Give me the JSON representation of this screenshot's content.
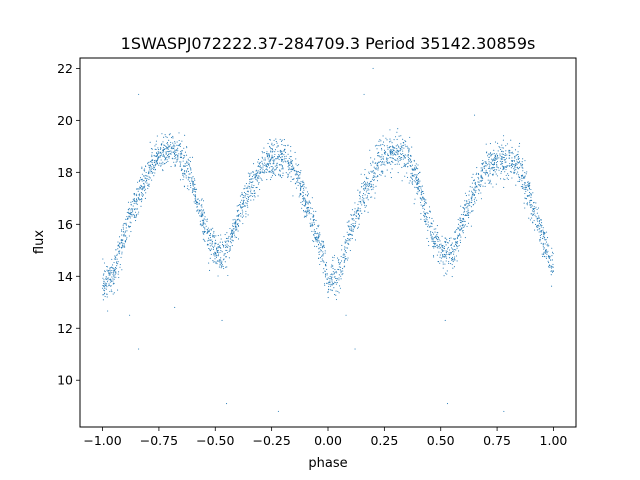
{
  "chart_data": {
    "type": "scatter",
    "title": "1SWASPJ072222.37-284709.3 Period 35142.30859s",
    "xlabel": "phase",
    "ylabel": "flux",
    "xlim": [
      -1.1,
      1.1
    ],
    "ylim": [
      8.2,
      22.4
    ],
    "x_ticks": [
      -1.0,
      -0.75,
      -0.5,
      -0.25,
      0.0,
      0.25,
      0.5,
      0.75,
      1.0
    ],
    "x_tick_labels": [
      "−1.00",
      "−0.75",
      "−0.50",
      "−0.25",
      "0.00",
      "0.25",
      "0.50",
      "0.75",
      "1.00"
    ],
    "y_ticks": [
      10,
      12,
      14,
      16,
      18,
      20,
      22
    ],
    "y_tick_labels": [
      "10",
      "12",
      "14",
      "16",
      "18",
      "20",
      "22"
    ],
    "grid": false,
    "series": [
      {
        "marker_color": "#1f77b4",
        "curve_samples": {
          "x": [
            0.0,
            0.05,
            0.1,
            0.15,
            0.2,
            0.25,
            0.3,
            0.35,
            0.4,
            0.45,
            0.5,
            0.55,
            0.6,
            0.65,
            0.7,
            0.75,
            0.8,
            0.85,
            0.9,
            0.95,
            1.0
          ],
          "y": [
            13.7,
            14.1,
            15.7,
            16.9,
            17.9,
            18.7,
            18.9,
            18.6,
            17.6,
            15.9,
            14.9,
            14.8,
            16.2,
            17.3,
            18.1,
            18.5,
            18.5,
            18.1,
            16.9,
            15.6,
            14.1
          ]
        },
        "scatter_sigma": 0.35,
        "outliers": [
          {
            "x": -0.84,
            "y": 11.2
          },
          {
            "x": -0.88,
            "y": 12.5
          },
          {
            "x": -0.45,
            "y": 9.1
          },
          {
            "x": -0.47,
            "y": 12.3
          },
          {
            "x": -0.22,
            "y": 8.8
          },
          {
            "x": 0.12,
            "y": 11.2
          },
          {
            "x": 0.08,
            "y": 12.5
          },
          {
            "x": 0.53,
            "y": 9.1
          },
          {
            "x": 0.78,
            "y": 8.8
          },
          {
            "x": 0.16,
            "y": 21.0
          },
          {
            "x": -0.84,
            "y": 21.0
          },
          {
            "x": 0.2,
            "y": 22.0
          },
          {
            "x": 0.52,
            "y": 12.3
          },
          {
            "x": -0.68,
            "y": 12.8
          },
          {
            "x": 0.65,
            "y": 20.2
          }
        ]
      }
    ]
  }
}
